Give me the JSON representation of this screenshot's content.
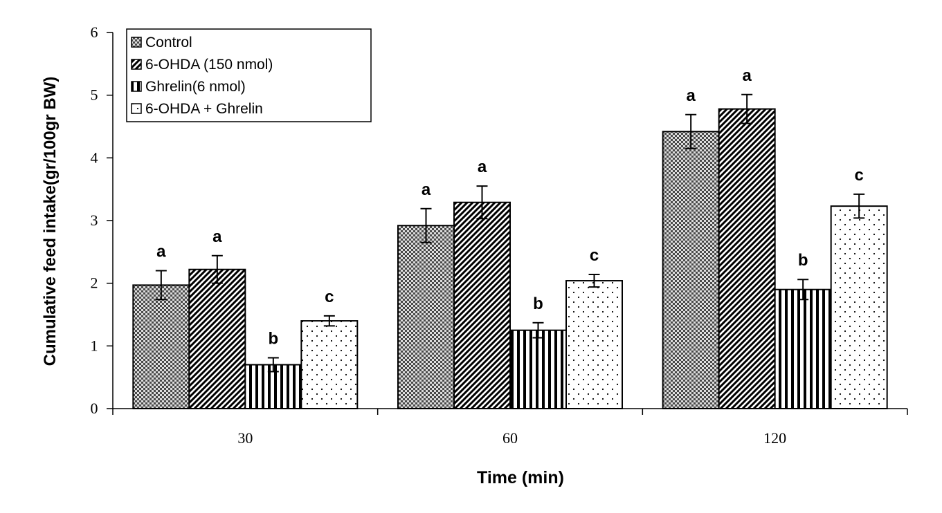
{
  "chart_data": {
    "type": "bar",
    "title": "",
    "xlabel": "Time (min)",
    "ylabel": "Cumulative feed intake(gr/100gr BW)",
    "categories": [
      "30",
      "60",
      "120"
    ],
    "ylim": [
      0,
      6
    ],
    "yticks": [
      "0",
      "1",
      "2",
      "3",
      "4",
      "5",
      "6"
    ],
    "grid": false,
    "legend_position": "top-left",
    "series": [
      {
        "name": "Control",
        "pattern": "checker",
        "values": [
          1.97,
          2.92,
          4.42
        ],
        "errors": [
          0.23,
          0.27,
          0.27
        ],
        "labels": [
          "a",
          "a",
          "a"
        ]
      },
      {
        "name": "6-OHDA (150 nmol)",
        "pattern": "diagonal",
        "values": [
          2.22,
          3.29,
          4.78
        ],
        "errors": [
          0.22,
          0.26,
          0.23
        ],
        "labels": [
          "a",
          "a",
          "a"
        ]
      },
      {
        "name": "Ghrelin(6 nmol)",
        "pattern": "vertical",
        "values": [
          0.7,
          1.25,
          1.9
        ],
        "errors": [
          0.11,
          0.12,
          0.16
        ],
        "labels": [
          "b",
          "b",
          "b"
        ]
      },
      {
        "name": "6-OHDA + Ghrelin",
        "pattern": "dots",
        "values": [
          1.4,
          2.04,
          3.23
        ],
        "errors": [
          0.08,
          0.1,
          0.19
        ],
        "labels": [
          "c",
          "c",
          "c"
        ]
      }
    ]
  }
}
